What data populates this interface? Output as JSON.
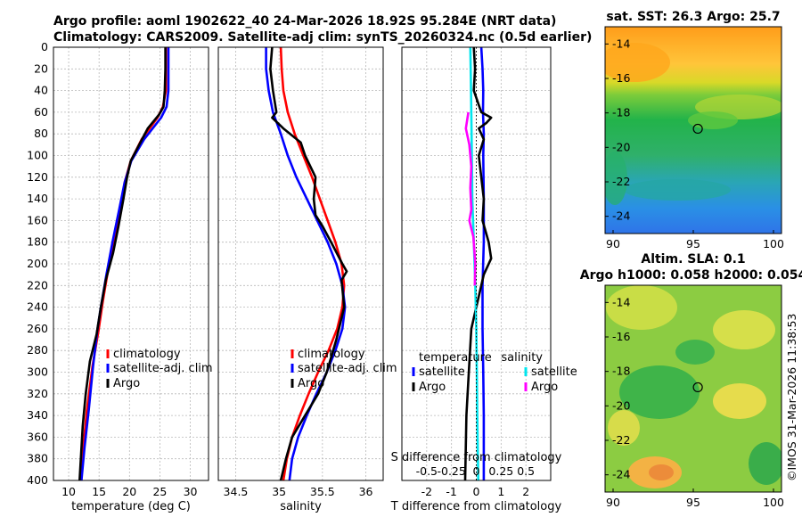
{
  "header": {
    "line1": "Argo profile: aoml 1902622_40 24-Mar-2026 18.92S 95.284E (NRT data)",
    "line2": "Climatology: CARS2009. Satellite-adj clim: synTS_20260324.nc (0.5d earlier)"
  },
  "side_stamp": "©IMOS 31-Mar-2026 11:38:53",
  "colors": {
    "climatology": "#ff0000",
    "satellite": "#0000ff",
    "argo": "#000000",
    "sat_diff": "#00e5ee",
    "argo_s_diff": "#ff00ff"
  },
  "chart_data": [
    {
      "type": "line",
      "name": "temperature profile",
      "xlabel": "temperature (deg C)",
      "ylabel": "",
      "xlim": [
        7.5,
        33
      ],
      "ylim": [
        400,
        0
      ],
      "x_ticks": [
        10,
        15,
        20,
        25,
        30
      ],
      "y_ticks": [
        0,
        20,
        40,
        60,
        80,
        100,
        120,
        140,
        160,
        180,
        200,
        220,
        240,
        260,
        280,
        300,
        320,
        340,
        360,
        380,
        400
      ],
      "legend": [
        "climatology",
        "satellite-adj. clim",
        "Argo"
      ],
      "legend_position": "lower-right",
      "series": [
        {
          "name": "climatology",
          "color": "#ff0000",
          "points": [
            [
              26.0,
              0
            ],
            [
              26.0,
              20
            ],
            [
              26.0,
              40
            ],
            [
              25.5,
              55
            ],
            [
              24.6,
              65
            ],
            [
              22.0,
              85
            ],
            [
              20.2,
              105
            ],
            [
              19.2,
              125
            ],
            [
              18.6,
              150
            ],
            [
              17.6,
              175
            ],
            [
              16.5,
              205
            ],
            [
              15.6,
              235
            ],
            [
              14.9,
              262
            ],
            [
              13.9,
              295
            ],
            [
              13.0,
              335
            ],
            [
              12.4,
              370
            ],
            [
              12.0,
              400
            ]
          ]
        },
        {
          "name": "satellite-adj. clim",
          "color": "#0000ff",
          "points": [
            [
              26.4,
              0
            ],
            [
              26.4,
              20
            ],
            [
              26.4,
              40
            ],
            [
              26.1,
              55
            ],
            [
              25.2,
              65
            ],
            [
              22.4,
              85
            ],
            [
              20.3,
              105
            ],
            [
              19.2,
              125
            ],
            [
              18.3,
              150
            ],
            [
              17.2,
              180
            ],
            [
              16.2,
              210
            ],
            [
              15.3,
              240
            ],
            [
              14.7,
              262
            ],
            [
              14.0,
              295
            ],
            [
              13.3,
              335
            ],
            [
              12.6,
              370
            ],
            [
              12.1,
              400
            ]
          ]
        },
        {
          "name": "Argo",
          "color": "#000000",
          "points": [
            [
              25.9,
              0
            ],
            [
              25.9,
              20
            ],
            [
              25.8,
              40
            ],
            [
              25.6,
              55
            ],
            [
              24.9,
              62
            ],
            [
              23.0,
              75
            ],
            [
              21.6,
              90
            ],
            [
              20.2,
              105
            ],
            [
              19.6,
              120
            ],
            [
              19.0,
              140
            ],
            [
              18.2,
              165
            ],
            [
              17.3,
              190
            ],
            [
              16.1,
              215
            ],
            [
              15.3,
              240
            ],
            [
              14.6,
              265
            ],
            [
              13.5,
              290
            ],
            [
              12.8,
              320
            ],
            [
              12.3,
              350
            ],
            [
              12.0,
              380
            ],
            [
              11.8,
              400
            ]
          ]
        }
      ]
    },
    {
      "type": "line",
      "name": "salinity profile",
      "xlabel": "salinity",
      "xlim": [
        34.3,
        36.2
      ],
      "ylim": [
        400,
        0
      ],
      "x_ticks": [
        34.5,
        35,
        35.5,
        36
      ],
      "legend": [
        "climatology",
        "satellite-adj. clim",
        "Argo"
      ],
      "legend_position": "lower-right",
      "series": [
        {
          "name": "climatology",
          "color": "#ff0000",
          "points": [
            [
              35.02,
              0
            ],
            [
              35.03,
              20
            ],
            [
              35.05,
              40
            ],
            [
              35.1,
              60
            ],
            [
              35.18,
              80
            ],
            [
              35.28,
              100
            ],
            [
              35.38,
              120
            ],
            [
              35.47,
              140
            ],
            [
              35.56,
              160
            ],
            [
              35.65,
              180
            ],
            [
              35.72,
              200
            ],
            [
              35.75,
              220
            ],
            [
              35.73,
              240
            ],
            [
              35.67,
              260
            ],
            [
              35.57,
              280
            ],
            [
              35.45,
              300
            ],
            [
              35.34,
              320
            ],
            [
              35.24,
              340
            ],
            [
              35.15,
              360
            ],
            [
              35.09,
              380
            ],
            [
              35.05,
              400
            ]
          ]
        },
        {
          "name": "satellite-adj. clim",
          "color": "#0000ff",
          "points": [
            [
              34.85,
              0
            ],
            [
              34.85,
              20
            ],
            [
              34.88,
              40
            ],
            [
              34.93,
              60
            ],
            [
              35.02,
              80
            ],
            [
              35.1,
              100
            ],
            [
              35.2,
              120
            ],
            [
              35.32,
              140
            ],
            [
              35.44,
              160
            ],
            [
              35.56,
              180
            ],
            [
              35.66,
              200
            ],
            [
              35.73,
              220
            ],
            [
              35.76,
              240
            ],
            [
              35.73,
              260
            ],
            [
              35.65,
              280
            ],
            [
              35.55,
              300
            ],
            [
              35.43,
              320
            ],
            [
              35.32,
              340
            ],
            [
              35.22,
              360
            ],
            [
              35.15,
              380
            ],
            [
              35.12,
              400
            ]
          ]
        },
        {
          "name": "Argo",
          "color": "#000000",
          "points": [
            [
              34.92,
              0
            ],
            [
              34.9,
              20
            ],
            [
              34.93,
              40
            ],
            [
              34.97,
              60
            ],
            [
              34.92,
              65
            ],
            [
              35.05,
              75
            ],
            [
              35.25,
              88
            ],
            [
              35.3,
              100
            ],
            [
              35.42,
              120
            ],
            [
              35.4,
              140
            ],
            [
              35.42,
              155
            ],
            [
              35.5,
              165
            ],
            [
              35.6,
              180
            ],
            [
              35.73,
              200
            ],
            [
              35.78,
              207
            ],
            [
              35.72,
              215
            ],
            [
              35.75,
              240
            ],
            [
              35.66,
              270
            ],
            [
              35.55,
              300
            ],
            [
              35.45,
              320
            ],
            [
              35.3,
              340
            ],
            [
              35.15,
              360
            ],
            [
              35.08,
              380
            ],
            [
              35.02,
              400
            ]
          ]
        }
      ]
    },
    {
      "type": "line",
      "name": "difference from climatology",
      "xlabel": "T difference from climatology",
      "top_axis_label": "S difference from climatology",
      "xlim": [
        -3,
        3
      ],
      "ylim": [
        400,
        0
      ],
      "x_ticks": [
        -2,
        -1,
        0,
        1,
        2
      ],
      "top_ticks": [
        "-0.5",
        "-0.25",
        "0",
        "0.25",
        "0.5"
      ],
      "legend_temperature": {
        "title": "temperature",
        "entries": [
          "satellite",
          "Argo"
        ]
      },
      "legend_salinity": {
        "title": "salinity",
        "entries": [
          "satellite",
          "Argo"
        ]
      },
      "series": [
        {
          "name": "temperature satellite",
          "color": "#0000ff",
          "points": [
            [
              0.2,
              0
            ],
            [
              0.25,
              20
            ],
            [
              0.28,
              40
            ],
            [
              0.27,
              60
            ],
            [
              0.3,
              80
            ],
            [
              0.28,
              100
            ],
            [
              0.3,
              140
            ],
            [
              0.3,
              180
            ],
            [
              0.25,
              220
            ],
            [
              0.25,
              260
            ],
            [
              0.28,
              300
            ],
            [
              0.3,
              340
            ],
            [
              0.3,
              400
            ]
          ]
        },
        {
          "name": "temperature Argo",
          "color": "#000000",
          "points": [
            [
              -0.1,
              0
            ],
            [
              -0.05,
              20
            ],
            [
              -0.1,
              40
            ],
            [
              0.2,
              60
            ],
            [
              0.6,
              65
            ],
            [
              0.4,
              70
            ],
            [
              0.1,
              75
            ],
            [
              0.3,
              85
            ],
            [
              0.1,
              100
            ],
            [
              0.2,
              120
            ],
            [
              0.3,
              140
            ],
            [
              0.25,
              160
            ],
            [
              0.5,
              180
            ],
            [
              0.6,
              195
            ],
            [
              0.3,
              210
            ],
            [
              0.1,
              230
            ],
            [
              -0.2,
              260
            ],
            [
              -0.3,
              300
            ],
            [
              -0.4,
              340
            ],
            [
              -0.45,
              400
            ]
          ]
        },
        {
          "name": "salinity satellite",
          "color": "#00e5ee",
          "points": [
            [
              -0.06,
              0
            ],
            [
              -0.055,
              30
            ],
            [
              -0.05,
              60
            ],
            [
              -0.045,
              100
            ],
            [
              -0.04,
              140
            ],
            [
              -0.025,
              180
            ],
            [
              -0.01,
              220
            ],
            [
              0.0,
              260
            ],
            [
              0.005,
              300
            ],
            [
              0.01,
              340
            ],
            [
              0.02,
              400
            ]
          ]
        },
        {
          "name": "salinity Argo",
          "color": "#ff00ff",
          "points": [
            [
              -0.08,
              60
            ],
            [
              -0.105,
              75
            ],
            [
              -0.07,
              90
            ],
            [
              -0.05,
              110
            ],
            [
              -0.06,
              130
            ],
            [
              -0.05,
              150
            ],
            [
              -0.07,
              160
            ],
            [
              -0.03,
              175
            ],
            [
              -0.01,
              200
            ],
            [
              -0.015,
              220
            ]
          ]
        }
      ]
    },
    {
      "type": "heatmap",
      "name": "sat SST map",
      "title": "sat. SST: 26.3 Argo: 25.7",
      "xlim": [
        89.5,
        100.5
      ],
      "ylim": [
        -25,
        -13
      ],
      "x_ticks": [
        "90",
        "95",
        "100"
      ],
      "y_ticks": [
        "-14",
        "-16",
        "-18",
        "-20",
        "-22",
        "-24"
      ],
      "argo_position": [
        95.284,
        -18.92
      ]
    },
    {
      "type": "heatmap",
      "name": "altimetry SLA map",
      "title_line1": "Altim. SLA: 0.1",
      "title_line2": "Argo h1000: 0.058 h2000: 0.054",
      "xlim": [
        89.5,
        100.5
      ],
      "ylim": [
        -25,
        -13
      ],
      "x_ticks": [
        "90",
        "95",
        "100"
      ],
      "y_ticks": [
        "-14",
        "-16",
        "-18",
        "-20",
        "-22",
        "-24"
      ],
      "argo_position": [
        95.284,
        -18.92
      ]
    }
  ]
}
